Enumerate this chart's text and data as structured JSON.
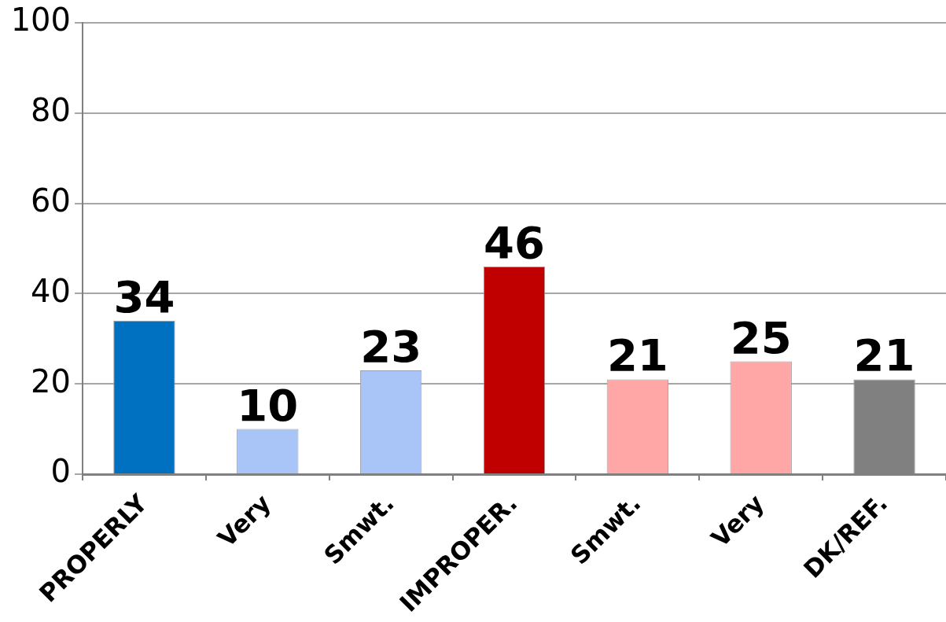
{
  "chart_data": {
    "type": "bar",
    "categories": [
      "PROPERLY",
      "Very",
      "Smwt.",
      "IMPROPER.",
      "Smwt.",
      "Very",
      "DK/REF."
    ],
    "values": [
      34,
      10,
      23,
      46,
      21,
      25,
      21
    ],
    "colors": [
      "#0070c0",
      "#a9c5f8",
      "#a9c5f8",
      "#c00000",
      "#ffa7a7",
      "#ffa7a7",
      "#808080"
    ],
    "ylim": [
      0,
      100
    ],
    "yticks": [
      0,
      20,
      40,
      60,
      80,
      100
    ],
    "grid": "y",
    "data_labels": true
  }
}
